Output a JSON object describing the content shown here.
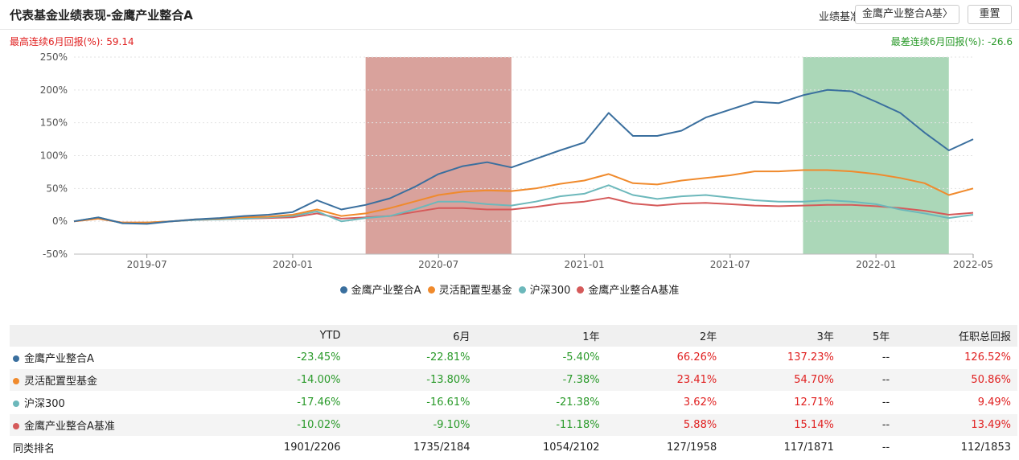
{
  "header": {
    "title": "代表基金业绩表现-金鹰产业整合A",
    "benchmark_label": "业绩基准:",
    "benchmark_value": "金鹰产业整合A基〉",
    "reset_label": "重置"
  },
  "stats": {
    "best_label": "最高连续6月回报(%): 59.14",
    "worst_label": "最差连续6月回报(%): -26.6"
  },
  "colors": {
    "fund": "#3a6f9e",
    "flexible": "#f08a2c",
    "hs300": "#6cb8bb",
    "benchmark": "#d55a5a",
    "best_band": "#cc837b",
    "worst_band": "#8fcaa0"
  },
  "chart_data": {
    "type": "line",
    "x_ticks": [
      "2019-07",
      "2020-01",
      "2020-07",
      "2021-01",
      "2021-07",
      "2022-01",
      "2022-05"
    ],
    "y_ticks": [
      "250%",
      "200%",
      "150%",
      "100%",
      "50%",
      "0%",
      "-50%"
    ],
    "ylim": [
      -50,
      250
    ],
    "xlim": [
      "2019-04",
      "2022-05"
    ],
    "highlight_bands": [
      {
        "start": "2020-04",
        "end": "2020-10",
        "kind": "best"
      },
      {
        "start": "2021-10",
        "end": "2022-04",
        "kind": "worst"
      }
    ],
    "x": [
      "2019-04",
      "2019-05",
      "2019-06",
      "2019-07",
      "2019-08",
      "2019-09",
      "2019-10",
      "2019-11",
      "2019-12",
      "2020-01",
      "2020-02",
      "2020-03",
      "2020-04",
      "2020-05",
      "2020-06",
      "2020-07",
      "2020-08",
      "2020-09",
      "2020-10",
      "2020-11",
      "2020-12",
      "2021-01",
      "2021-02",
      "2021-03",
      "2021-04",
      "2021-05",
      "2021-06",
      "2021-07",
      "2021-08",
      "2021-09",
      "2021-10",
      "2021-11",
      "2021-12",
      "2022-01",
      "2022-02",
      "2022-03",
      "2022-04",
      "2022-05"
    ],
    "series": [
      {
        "name": "金鹰产业整合A",
        "color_key": "fund",
        "values": [
          0,
          6,
          -3,
          -4,
          0,
          3,
          5,
          8,
          10,
          14,
          32,
          18,
          25,
          35,
          52,
          72,
          84,
          90,
          82,
          95,
          108,
          120,
          165,
          130,
          130,
          138,
          158,
          170,
          182,
          180,
          192,
          200,
          198,
          182,
          165,
          135,
          108,
          125
        ]
      },
      {
        "name": "灵活配置型基金",
        "color_key": "flexible",
        "values": [
          0,
          4,
          -2,
          -2,
          0,
          3,
          4,
          6,
          7,
          10,
          18,
          8,
          12,
          20,
          30,
          40,
          45,
          47,
          46,
          50,
          57,
          62,
          72,
          58,
          56,
          62,
          66,
          70,
          76,
          76,
          78,
          78,
          76,
          72,
          66,
          58,
          40,
          50
        ]
      },
      {
        "name": "沪深300",
        "color_key": "hs300",
        "values": [
          0,
          6,
          -3,
          -2,
          0,
          2,
          3,
          4,
          6,
          8,
          15,
          0,
          5,
          8,
          18,
          30,
          30,
          26,
          24,
          30,
          38,
          42,
          55,
          40,
          34,
          38,
          40,
          36,
          32,
          30,
          30,
          32,
          30,
          26,
          18,
          12,
          5,
          10
        ]
      },
      {
        "name": "金鹰产业整合A基准",
        "color_key": "benchmark",
        "values": [
          0,
          4,
          -2,
          -2,
          0,
          2,
          3,
          4,
          5,
          6,
          12,
          4,
          6,
          8,
          14,
          20,
          20,
          18,
          18,
          22,
          27,
          30,
          36,
          27,
          24,
          27,
          28,
          26,
          24,
          23,
          24,
          25,
          25,
          23,
          20,
          16,
          10,
          13
        ]
      }
    ]
  },
  "table": {
    "columns": [
      "",
      "YTD",
      "6月",
      "1年",
      "2年",
      "3年",
      "5年",
      "任职总回报"
    ],
    "rows": [
      {
        "name": "金鹰产业整合A",
        "color_key": "fund",
        "cells": [
          "-23.45%",
          "-22.81%",
          "-5.40%",
          "66.26%",
          "137.23%",
          "--",
          "126.52%"
        ]
      },
      {
        "name": "灵活配置型基金",
        "color_key": "flexible",
        "cells": [
          "-14.00%",
          "-13.80%",
          "-7.38%",
          "23.41%",
          "54.70%",
          "--",
          "50.86%"
        ]
      },
      {
        "name": "沪深300",
        "color_key": "hs300",
        "cells": [
          "-17.46%",
          "-16.61%",
          "-21.38%",
          "3.62%",
          "12.71%",
          "--",
          "9.49%"
        ]
      },
      {
        "name": "金鹰产业整合A基准",
        "color_key": "benchmark",
        "cells": [
          "-10.02%",
          "-9.10%",
          "-11.18%",
          "5.88%",
          "15.14%",
          "--",
          "13.49%"
        ]
      }
    ],
    "rank_row": {
      "name": "同类排名",
      "cells": [
        "1901/2206",
        "1735/2184",
        "1054/2102",
        "127/1958",
        "117/1871",
        "--",
        "112/1853"
      ]
    }
  }
}
